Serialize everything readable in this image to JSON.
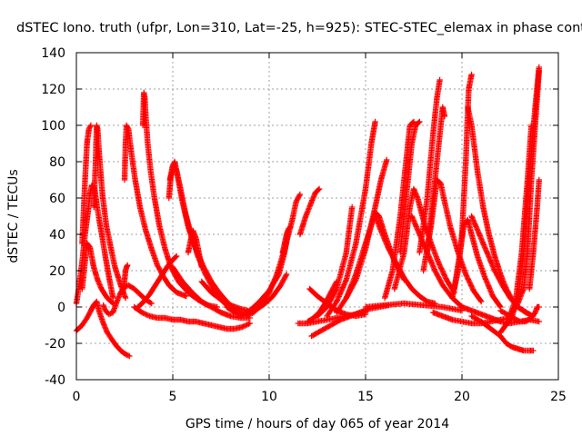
{
  "chart_data": {
    "type": "scatter",
    "title": "dSTEC Iono. truth (ufpr, Lon=310, Lat=-25, h=925): STEC-STEC_elemax in phase cont",
    "xlabel": "GPS time / hours of day 065 of year 2014",
    "ylabel": "dSTEC  / TECUs",
    "xlim": [
      0,
      25
    ],
    "ylim": [
      -40,
      140
    ],
    "xticks": [
      0,
      5,
      10,
      15,
      20,
      25
    ],
    "yticks": [
      -40,
      -20,
      0,
      20,
      40,
      60,
      80,
      100,
      120,
      140
    ],
    "grid": true,
    "marker": "+",
    "series_color": "#ff0000",
    "series": [
      {
        "x": [
          0.0,
          0.3,
          0.55,
          0.75,
          0.9,
          1.05,
          1.2,
          1.4,
          1.6,
          1.85,
          2.05,
          2.3,
          2.55,
          2.75
        ],
        "values": [
          -13,
          -10,
          -6,
          -2,
          1,
          3,
          -3,
          -9,
          -14,
          -18,
          -21,
          -24,
          -26,
          -27
        ]
      },
      {
        "x": [
          0.0,
          0.15,
          0.3,
          0.45,
          0.6,
          0.7,
          0.8,
          0.95,
          1.05,
          1.2,
          1.35,
          1.5,
          1.7,
          1.9
        ],
        "values": [
          2,
          12,
          25,
          40,
          52,
          62,
          67,
          65,
          57,
          47,
          38,
          28,
          16,
          5
        ]
      },
      {
        "x": [
          0.3,
          0.45,
          0.55,
          0.65,
          0.75
        ],
        "values": [
          35,
          70,
          90,
          98,
          100
        ]
      },
      {
        "x": [
          0.3,
          0.45,
          0.55,
          0.7,
          0.9,
          1.1,
          1.3,
          1.6,
          1.9
        ],
        "values": [
          10,
          25,
          35,
          33,
          22,
          15,
          10,
          5,
          2
        ]
      },
      {
        "x": [
          0.9,
          1.0,
          1.05,
          1.1,
          1.2,
          1.35,
          1.55,
          1.8,
          2.0,
          2.3,
          2.55
        ],
        "values": [
          55,
          80,
          100,
          98,
          82,
          62,
          45,
          32,
          22,
          12,
          5
        ]
      },
      {
        "x": [
          1.4,
          1.5,
          1.7,
          1.9,
          2.1,
          2.3,
          2.5,
          2.7,
          3.0,
          3.3,
          3.6,
          3.9
        ],
        "values": [
          1,
          -2,
          -4,
          -3,
          3,
          8,
          11,
          12,
          10,
          7,
          4,
          2
        ]
      },
      {
        "x": [
          2.4,
          2.5,
          2.55,
          2.6,
          2.65
        ],
        "values": [
          8,
          15,
          20,
          22,
          23
        ]
      },
      {
        "x": [
          2.5,
          2.55,
          2.6,
          2.7,
          2.85,
          3.05,
          3.3,
          3.6,
          3.9,
          4.2,
          4.5,
          4.8,
          5.2,
          5.7
        ],
        "values": [
          70,
          90,
          100,
          98,
          85,
          70,
          55,
          42,
          32,
          23,
          17,
          12,
          8,
          6
        ]
      },
      {
        "x": [
          3.0,
          3.4,
          3.8,
          4.2,
          4.6,
          5.0,
          5.4,
          5.8,
          6.2,
          6.6,
          7.0,
          7.4,
          7.8,
          8.2,
          8.6,
          9.0
        ],
        "values": [
          0,
          -3,
          -5,
          -6,
          -6,
          -7,
          -7,
          -8,
          -8,
          -9,
          -10,
          -11,
          -12,
          -12,
          -11,
          -9
        ]
      },
      {
        "x": [
          3.2,
          3.5,
          3.8,
          4.1,
          4.4,
          4.7,
          5.0,
          5.2
        ],
        "values": [
          0,
          3,
          7,
          12,
          17,
          22,
          26,
          28
        ]
      },
      {
        "x": [
          3.45,
          3.5,
          3.55,
          3.6,
          3.7,
          3.85,
          4.05,
          4.3,
          4.6,
          4.9,
          5.3,
          5.8,
          6.3,
          6.8,
          7.3
        ],
        "values": [
          100,
          118,
          115,
          105,
          90,
          75,
          60,
          45,
          32,
          22,
          14,
          8,
          4,
          1,
          0
        ]
      },
      {
        "x": [
          4.8,
          4.9,
          5.05,
          5.2,
          5.4,
          5.65,
          5.95,
          6.3,
          6.7,
          7.1,
          7.5,
          7.9,
          8.3
        ],
        "values": [
          60,
          72,
          78,
          75,
          65,
          52,
          40,
          28,
          18,
          10,
          4,
          0,
          -3
        ]
      },
      {
        "x": [
          4.85,
          5.0,
          5.1,
          5.25,
          5.5,
          5.8,
          6.2,
          6.6,
          7.0,
          7.4,
          7.8,
          8.2,
          8.6
        ],
        "values": [
          70,
          78,
          80,
          72,
          58,
          44,
          32,
          22,
          14,
          8,
          3,
          -1,
          -4
        ]
      },
      {
        "x": [
          5.0,
          5.5,
          6.0,
          6.5,
          7.0,
          7.5,
          8.0,
          8.5,
          9.0
        ],
        "values": [
          22,
          14,
          8,
          3,
          0,
          -3,
          -5,
          -6,
          -6
        ]
      },
      {
        "x": [
          5.8,
          5.95,
          6.05,
          6.2,
          6.35,
          6.5
        ],
        "values": [
          30,
          38,
          42,
          38,
          30,
          22
        ]
      },
      {
        "x": [
          6.5,
          7.0,
          7.5,
          8.0,
          8.5,
          8.9
        ],
        "values": [
          14,
          8,
          4,
          1,
          -1,
          -2
        ]
      },
      {
        "x": [
          7.8,
          8.2,
          8.6,
          9.0,
          9.4,
          9.8,
          10.2,
          10.6,
          10.9
        ],
        "values": [
          0,
          -3,
          -4,
          -3,
          -1,
          2,
          6,
          12,
          18
        ]
      },
      {
        "x": [
          8.5,
          9.0,
          9.5,
          10.0,
          10.5,
          10.8,
          11.0
        ],
        "values": [
          -5,
          -2,
          3,
          9,
          18,
          30,
          42
        ]
      },
      {
        "x": [
          8.8,
          9.2,
          9.6,
          10.0,
          10.4,
          10.8,
          11.2,
          11.4,
          11.6
        ],
        "values": [
          -5,
          -3,
          2,
          8,
          18,
          32,
          48,
          58,
          62
        ]
      },
      {
        "x": [
          10.7,
          10.8,
          10.9,
          11.0,
          11.1
        ],
        "values": [
          30,
          35,
          40,
          43,
          44
        ]
      },
      {
        "x": [
          11.5,
          12.0,
          12.5,
          13.0,
          13.5,
          14.0,
          14.5,
          15.0
        ],
        "values": [
          -9,
          -9,
          -8,
          -7,
          -6,
          -5,
          -4,
          -3
        ]
      },
      {
        "x": [
          11.6,
          11.9,
          12.2,
          12.4,
          12.6
        ],
        "values": [
          40,
          50,
          58,
          63,
          65
        ]
      },
      {
        "x": [
          12.0,
          12.3,
          12.6,
          12.9,
          13.2,
          13.5
        ],
        "values": [
          -8,
          -6,
          -3,
          2,
          8,
          14
        ]
      },
      {
        "x": [
          12.1,
          12.5,
          13.0,
          13.5,
          14.0,
          14.5,
          15.0
        ],
        "values": [
          10,
          6,
          2,
          -2,
          -4,
          -5,
          -4
        ]
      },
      {
        "x": [
          12.2,
          12.7,
          13.2,
          13.7,
          14.2,
          14.7,
          15.2,
          15.7,
          16.2
        ],
        "values": [
          -16,
          -13,
          -10,
          -7,
          -5,
          -3,
          -1,
          0,
          1
        ]
      },
      {
        "x": [
          12.5,
          13.0,
          13.5,
          14.0,
          14.3
        ],
        "values": [
          -5,
          0,
          10,
          30,
          55
        ]
      },
      {
        "x": [
          13.0,
          13.5,
          14.0,
          14.5,
          15.0,
          15.3,
          15.5
        ],
        "values": [
          -5,
          3,
          15,
          35,
          65,
          90,
          102
        ]
      },
      {
        "x": [
          13.5,
          14.0,
          14.5,
          15.0,
          15.5,
          15.8,
          16.1
        ],
        "values": [
          -3,
          5,
          15,
          32,
          55,
          70,
          81
        ]
      },
      {
        "x": [
          14.0,
          14.5,
          15.0,
          15.3,
          15.5,
          15.7,
          16.0,
          16.5,
          17.0
        ],
        "values": [
          5,
          18,
          35,
          45,
          52,
          50,
          40,
          25,
          15
        ]
      },
      {
        "x": [
          15.5,
          15.8,
          16.2,
          16.6,
          17.0,
          17.4,
          17.8,
          18.2,
          18.6
        ],
        "values": [
          50,
          42,
          32,
          24,
          16,
          10,
          6,
          3,
          2
        ]
      },
      {
        "x": [
          15.0,
          16.0,
          17.0,
          18.0,
          19.0,
          19.5,
          20.0
        ],
        "values": [
          0,
          1,
          2,
          1,
          0,
          -1,
          -2
        ]
      },
      {
        "x": [
          16.0,
          16.4,
          16.8,
          17.1,
          17.3,
          17.5
        ],
        "values": [
          5,
          20,
          50,
          80,
          100,
          102
        ]
      },
      {
        "x": [
          16.5,
          17.0,
          17.3,
          17.5,
          17.7,
          18.0,
          18.4,
          18.8,
          19.2,
          19.6
        ],
        "values": [
          10,
          30,
          55,
          65,
          60,
          48,
          35,
          24,
          15,
          8
        ]
      },
      {
        "x": [
          16.8,
          17.1,
          17.4,
          17.6,
          17.8
        ],
        "values": [
          30,
          60,
          90,
          100,
          102
        ]
      },
      {
        "x": [
          17.4,
          17.8,
          18.2,
          18.6,
          19.0,
          19.5,
          20.0
        ],
        "values": [
          50,
          40,
          30,
          20,
          12,
          5,
          0
        ]
      },
      {
        "x": [
          17.8,
          18.2,
          18.5,
          18.7,
          18.85
        ],
        "values": [
          30,
          60,
          95,
          115,
          125
        ]
      },
      {
        "x": [
          18.0,
          18.4,
          18.7,
          18.9,
          19.1,
          19.4,
          19.8,
          20.2,
          20.6,
          21.0
        ],
        "values": [
          20,
          45,
          70,
          68,
          58,
          44,
          30,
          18,
          9,
          3
        ]
      },
      {
        "x": [
          18.2,
          18.6,
          18.9,
          19.0,
          19.1
        ],
        "values": [
          30,
          70,
          100,
          110,
          105
        ]
      },
      {
        "x": [
          18.5,
          19.0,
          19.5,
          20.0,
          20.5,
          21.0,
          21.5,
          22.0,
          22.5
        ],
        "values": [
          -3,
          -5,
          -7,
          -8,
          -9,
          -9,
          -8,
          -7,
          -6
        ]
      },
      {
        "x": [
          19.5,
          19.8,
          20.0,
          20.2,
          20.35,
          20.5
        ],
        "values": [
          5,
          20,
          40,
          80,
          120,
          128
        ]
      },
      {
        "x": [
          19.6,
          19.9,
          20.1,
          20.3,
          20.5,
          20.8,
          21.2,
          21.6,
          22.0
        ],
        "values": [
          10,
          30,
          45,
          48,
          40,
          28,
          16,
          6,
          0
        ]
      },
      {
        "x": [
          20.3,
          20.5,
          20.8,
          21.1,
          21.4,
          21.7,
          22.0,
          22.3,
          22.6,
          22.9,
          23.2,
          23.5
        ],
        "values": [
          110,
          100,
          75,
          55,
          40,
          28,
          18,
          10,
          4,
          0,
          -2,
          -4
        ]
      },
      {
        "x": [
          20.5,
          20.9,
          21.3,
          21.7,
          22.1,
          22.5,
          22.9,
          23.3,
          23.7
        ],
        "values": [
          50,
          40,
          30,
          20,
          12,
          5,
          0,
          -3,
          -5
        ]
      },
      {
        "x": [
          20.0,
          20.5,
          21.0,
          21.5,
          22.0,
          22.5,
          23.0,
          23.5,
          24.0
        ],
        "values": [
          0,
          -2,
          -4,
          -6,
          -8,
          -9,
          -8,
          -7,
          -8
        ]
      },
      {
        "x": [
          20.5,
          21.0,
          21.5,
          22.0,
          22.3,
          22.6,
          22.9,
          23.2,
          23.5,
          23.7
        ],
        "values": [
          -5,
          -8,
          -12,
          -16,
          -20,
          -22,
          -23,
          -24,
          -24,
          -24
        ]
      },
      {
        "x": [
          22.0,
          22.4,
          22.8,
          23.1,
          23.4,
          23.6
        ],
        "values": [
          -14,
          -8,
          5,
          30,
          70,
          100
        ]
      },
      {
        "x": [
          22.3,
          22.6,
          22.9,
          23.2,
          23.4,
          23.6,
          23.8,
          24.0
        ],
        "values": [
          -10,
          -5,
          5,
          30,
          60,
          85,
          110,
          132
        ]
      },
      {
        "x": [
          22.6,
          22.9,
          23.2,
          23.4,
          23.6,
          23.8,
          24.0
        ],
        "values": [
          -3,
          2,
          10,
          30,
          70,
          100,
          130
        ]
      },
      {
        "x": [
          22.0,
          22.5,
          23.0,
          23.3,
          23.6,
          23.8,
          23.9,
          24.0
        ],
        "values": [
          -2,
          -5,
          -8,
          -8,
          -6,
          -3,
          0,
          0
        ]
      },
      {
        "x": [
          23.5,
          23.7,
          23.9,
          24.0
        ],
        "values": [
          10,
          30,
          55,
          70
        ]
      }
    ]
  }
}
